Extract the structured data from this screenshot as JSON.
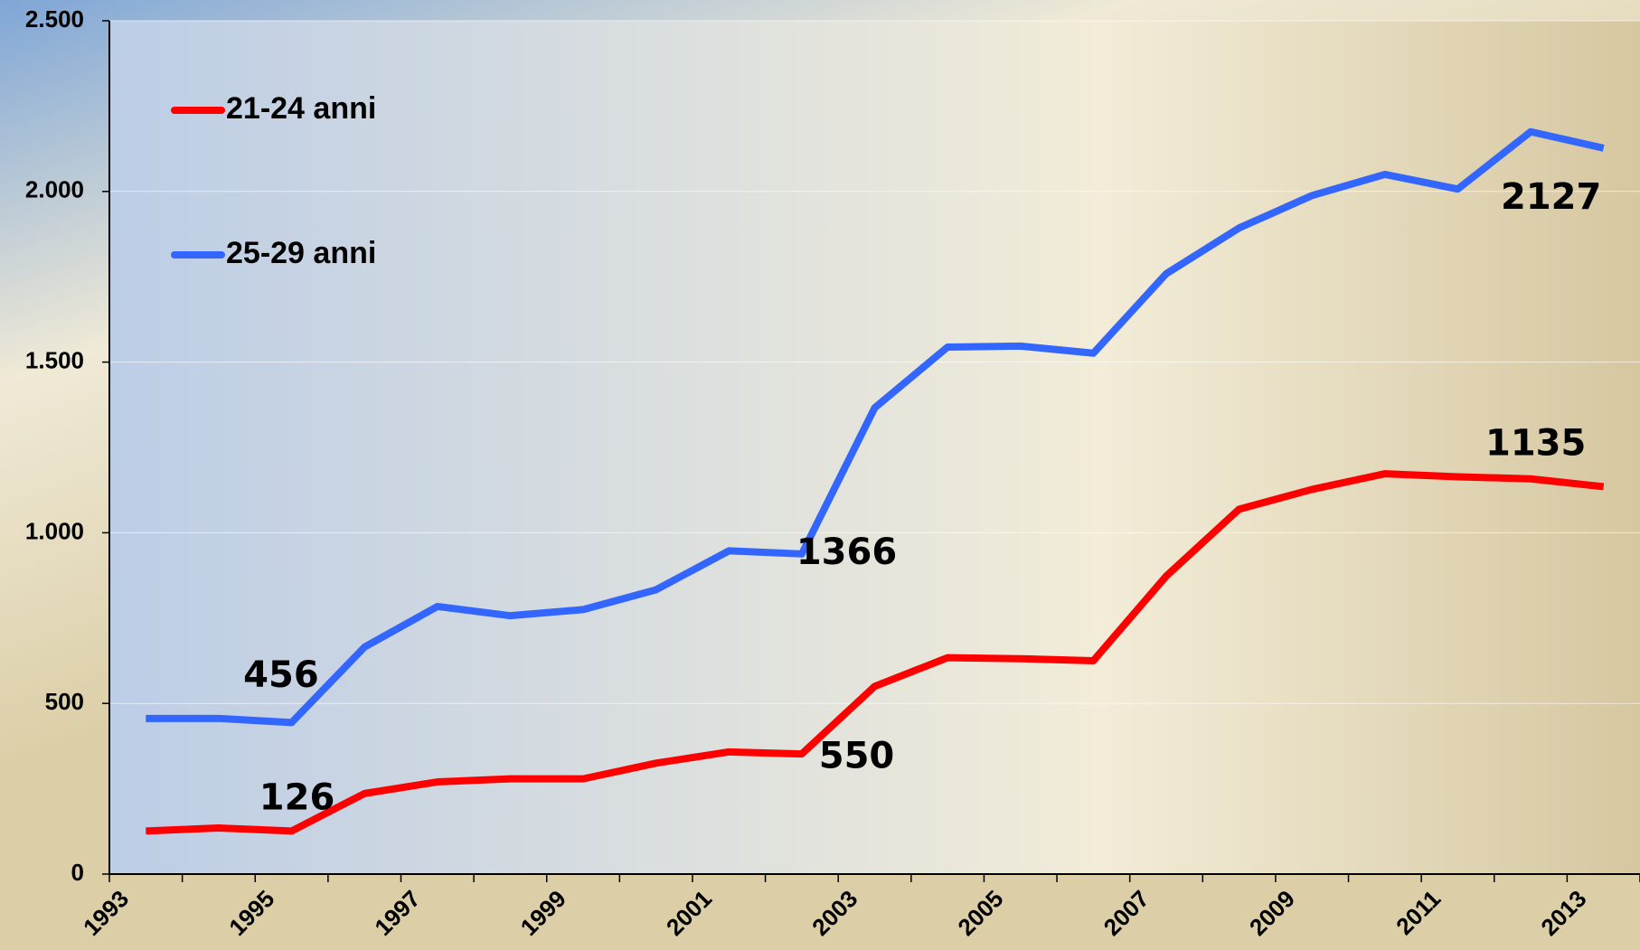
{
  "chart_data": {
    "type": "line",
    "categories": [
      "1993",
      null,
      "1995",
      null,
      "1997",
      null,
      "1999",
      null,
      "2001",
      null,
      "2003",
      null,
      "2005",
      null,
      "2007",
      null,
      "2009",
      null,
      "2011",
      null,
      "2013"
    ],
    "series": [
      {
        "name": "21-24 anni",
        "color": "#ff0000",
        "values": [
          126,
          135,
          126,
          236,
          270,
          279,
          279,
          325,
          358,
          352,
          550,
          634,
          631,
          625,
          873,
          1069,
          1127,
          1173,
          1164,
          1158,
          1135
        ]
      },
      {
        "name": "25-29 anni",
        "color": "#3366ff",
        "values": [
          456,
          456,
          444,
          665,
          784,
          757,
          775,
          833,
          947,
          938,
          1366,
          1544,
          1547,
          1526,
          1759,
          1893,
          1988,
          2050,
          2007,
          2175,
          2127
        ]
      }
    ],
    "ylim": [
      0,
      2500
    ],
    "yticks": [
      0,
      500,
      {
        "value": 1000,
        "label": "1.000"
      },
      {
        "value": 1500,
        "label": "1.500"
      },
      {
        "value": 2000,
        "label": "2.000"
      },
      {
        "value": 2500,
        "label": "2.500"
      }
    ],
    "grid": true,
    "legend": "upper left"
  }
}
